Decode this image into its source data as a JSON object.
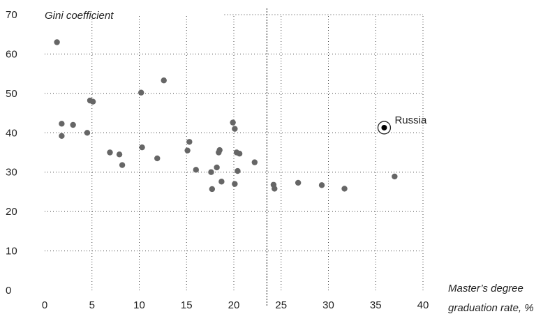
{
  "chart_data": {
    "type": "scatter",
    "ylabel": "Gini coefficient",
    "xlabel_line1": "Master’s degree",
    "xlabel_line2": "graduation rate, %",
    "xlim": [
      0,
      40
    ],
    "ylim": [
      0,
      70
    ],
    "x_ticks": [
      0,
      5,
      10,
      15,
      20,
      25,
      30,
      35,
      40
    ],
    "y_ticks": [
      0,
      10,
      20,
      30,
      40,
      50,
      60,
      70
    ],
    "grid": true,
    "marker_line_x": 23.5,
    "point_color": "#666666",
    "highlight_color": "#000000",
    "points": [
      {
        "x": 1.3,
        "y": 63.0
      },
      {
        "x": 1.8,
        "y": 42.3
      },
      {
        "x": 1.8,
        "y": 39.2
      },
      {
        "x": 3.0,
        "y": 42.0
      },
      {
        "x": 4.5,
        "y": 40.0
      },
      {
        "x": 4.8,
        "y": 48.2
      },
      {
        "x": 5.1,
        "y": 47.9
      },
      {
        "x": 6.9,
        "y": 35.0
      },
      {
        "x": 7.9,
        "y": 34.5
      },
      {
        "x": 8.2,
        "y": 31.8
      },
      {
        "x": 10.2,
        "y": 50.2
      },
      {
        "x": 10.3,
        "y": 36.3
      },
      {
        "x": 11.9,
        "y": 33.5
      },
      {
        "x": 12.6,
        "y": 53.3
      },
      {
        "x": 15.1,
        "y": 35.5
      },
      {
        "x": 15.3,
        "y": 37.7
      },
      {
        "x": 16.0,
        "y": 30.6
      },
      {
        "x": 17.6,
        "y": 30.0
      },
      {
        "x": 17.7,
        "y": 25.7
      },
      {
        "x": 18.2,
        "y": 31.2
      },
      {
        "x": 18.4,
        "y": 35.0
      },
      {
        "x": 18.5,
        "y": 35.6
      },
      {
        "x": 18.7,
        "y": 27.6
      },
      {
        "x": 19.9,
        "y": 42.6
      },
      {
        "x": 20.1,
        "y": 41.0
      },
      {
        "x": 20.1,
        "y": 27.0
      },
      {
        "x": 20.3,
        "y": 35.0
      },
      {
        "x": 20.4,
        "y": 30.3
      },
      {
        "x": 20.6,
        "y": 34.7
      },
      {
        "x": 22.2,
        "y": 32.5
      },
      {
        "x": 24.2,
        "y": 26.8
      },
      {
        "x": 24.3,
        "y": 25.8
      },
      {
        "x": 26.8,
        "y": 27.3
      },
      {
        "x": 29.3,
        "y": 26.7
      },
      {
        "x": 31.7,
        "y": 25.8
      },
      {
        "x": 37.0,
        "y": 28.9
      }
    ],
    "highlight": {
      "x": 35.9,
      "y": 41.3,
      "label": "Russia"
    }
  }
}
